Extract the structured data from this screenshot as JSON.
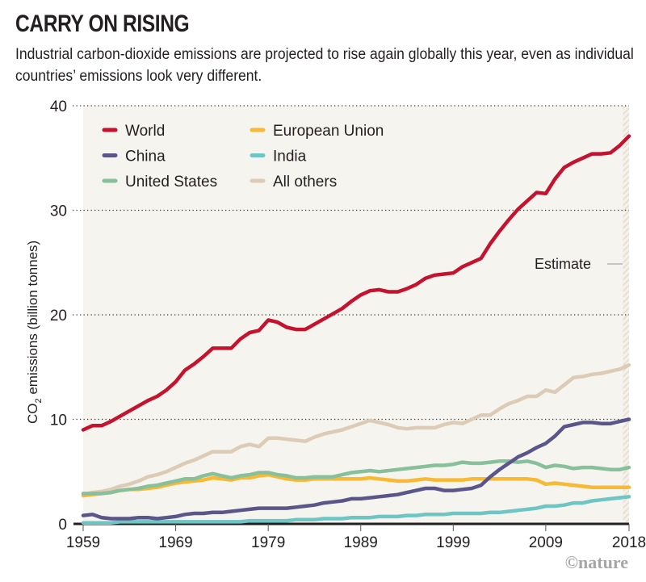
{
  "header": {
    "title": "CARRY ON RISING",
    "subtitle": "Industrial carbon-dioxide emissions are projected to rise again globally this year, even as individual countries’ emissions look very different."
  },
  "credit": "©nature",
  "chart_data": {
    "type": "line",
    "title": "CARRY ON RISING",
    "xlabel": "",
    "ylabel": "CO2 emissions (billion tonnes)",
    "ylabel_main": "CO",
    "ylabel_sub": "2",
    "ylabel_rest": " emissions (billion tonnes)",
    "xlim": [
      1959,
      2018
    ],
    "ylim": [
      0,
      40
    ],
    "x_ticks": [
      1959,
      1969,
      1979,
      1989,
      1999,
      2009,
      2018
    ],
    "x_tick_labels": [
      "1959",
      "1969",
      "1979",
      "1989",
      "1999",
      "2009",
      "2018"
    ],
    "y_ticks": [
      0,
      10,
      20,
      30,
      40
    ],
    "y_tick_labels": [
      "0",
      "10",
      "20",
      "30",
      "40"
    ],
    "grid": "horizontal dotted",
    "legend_position": "top-left",
    "annotation": {
      "text": "Estimate",
      "x_range": [
        2017,
        2018
      ]
    },
    "x": [
      1959,
      1960,
      1961,
      1962,
      1963,
      1964,
      1965,
      1966,
      1967,
      1968,
      1969,
      1970,
      1971,
      1972,
      1973,
      1974,
      1975,
      1976,
      1977,
      1978,
      1979,
      1980,
      1981,
      1982,
      1983,
      1984,
      1985,
      1986,
      1987,
      1988,
      1989,
      1990,
      1991,
      1992,
      1993,
      1994,
      1995,
      1996,
      1997,
      1998,
      1999,
      2000,
      2001,
      2002,
      2003,
      2004,
      2005,
      2006,
      2007,
      2008,
      2009,
      2010,
      2011,
      2012,
      2013,
      2014,
      2015,
      2016,
      2017,
      2018
    ],
    "series": [
      {
        "name": "World",
        "color": "#c4122f",
        "values": [
          9.0,
          9.4,
          9.4,
          9.8,
          10.3,
          10.8,
          11.3,
          11.8,
          12.2,
          12.8,
          13.6,
          14.7,
          15.3,
          16.0,
          16.8,
          16.8,
          16.8,
          17.7,
          18.3,
          18.5,
          19.5,
          19.3,
          18.8,
          18.6,
          18.6,
          19.1,
          19.6,
          20.1,
          20.6,
          21.3,
          21.9,
          22.3,
          22.4,
          22.2,
          22.2,
          22.5,
          22.9,
          23.5,
          23.8,
          23.9,
          24.0,
          24.6,
          25.0,
          25.4,
          26.8,
          28.0,
          29.1,
          30.1,
          30.9,
          31.7,
          31.6,
          33.0,
          34.1,
          34.6,
          35.0,
          35.4,
          35.4,
          35.5,
          36.2,
          37.1
        ]
      },
      {
        "name": "China",
        "color": "#5b5689",
        "values": [
          0.8,
          0.9,
          0.6,
          0.5,
          0.5,
          0.5,
          0.6,
          0.6,
          0.5,
          0.6,
          0.7,
          0.9,
          1.0,
          1.0,
          1.1,
          1.1,
          1.2,
          1.3,
          1.4,
          1.5,
          1.5,
          1.5,
          1.5,
          1.6,
          1.7,
          1.8,
          2.0,
          2.1,
          2.2,
          2.4,
          2.4,
          2.5,
          2.6,
          2.7,
          2.8,
          3.0,
          3.2,
          3.4,
          3.4,
          3.2,
          3.2,
          3.3,
          3.4,
          3.7,
          4.5,
          5.2,
          5.8,
          6.4,
          6.8,
          7.3,
          7.7,
          8.4,
          9.3,
          9.5,
          9.7,
          9.7,
          9.6,
          9.6,
          9.8,
          10.0
        ]
      },
      {
        "name": "United States",
        "color": "#87c09a",
        "values": [
          2.9,
          2.9,
          2.9,
          3.0,
          3.2,
          3.3,
          3.4,
          3.6,
          3.7,
          3.9,
          4.1,
          4.3,
          4.3,
          4.6,
          4.8,
          4.6,
          4.4,
          4.6,
          4.7,
          4.9,
          4.9,
          4.7,
          4.6,
          4.4,
          4.4,
          4.5,
          4.5,
          4.5,
          4.7,
          4.9,
          5.0,
          5.1,
          5.0,
          5.1,
          5.2,
          5.3,
          5.4,
          5.5,
          5.6,
          5.6,
          5.7,
          5.9,
          5.8,
          5.8,
          5.9,
          6.0,
          6.0,
          5.9,
          6.0,
          5.8,
          5.4,
          5.6,
          5.5,
          5.3,
          5.4,
          5.4,
          5.3,
          5.2,
          5.2,
          5.4
        ]
      },
      {
        "name": "European Union",
        "color": "#f8b934",
        "values": [
          2.7,
          2.8,
          2.9,
          3.0,
          3.2,
          3.3,
          3.3,
          3.4,
          3.5,
          3.7,
          3.9,
          4.0,
          4.1,
          4.2,
          4.4,
          4.3,
          4.2,
          4.4,
          4.4,
          4.6,
          4.7,
          4.5,
          4.3,
          4.2,
          4.2,
          4.3,
          4.3,
          4.3,
          4.3,
          4.3,
          4.3,
          4.4,
          4.3,
          4.2,
          4.1,
          4.1,
          4.2,
          4.3,
          4.2,
          4.2,
          4.2,
          4.2,
          4.3,
          4.3,
          4.3,
          4.3,
          4.3,
          4.3,
          4.3,
          4.2,
          3.8,
          3.9,
          3.8,
          3.7,
          3.6,
          3.5,
          3.5,
          3.5,
          3.5,
          3.5
        ]
      },
      {
        "name": "India",
        "color": "#6ec5c4",
        "values": [
          0.1,
          0.1,
          0.1,
          0.1,
          0.2,
          0.2,
          0.2,
          0.2,
          0.2,
          0.2,
          0.2,
          0.2,
          0.2,
          0.2,
          0.2,
          0.2,
          0.2,
          0.2,
          0.3,
          0.3,
          0.3,
          0.3,
          0.3,
          0.4,
          0.4,
          0.4,
          0.5,
          0.5,
          0.5,
          0.6,
          0.6,
          0.6,
          0.7,
          0.7,
          0.7,
          0.8,
          0.8,
          0.9,
          0.9,
          0.9,
          1.0,
          1.0,
          1.0,
          1.0,
          1.1,
          1.1,
          1.2,
          1.3,
          1.4,
          1.5,
          1.7,
          1.7,
          1.8,
          2.0,
          2.0,
          2.2,
          2.3,
          2.4,
          2.5,
          2.6
        ]
      },
      {
        "name": "All others",
        "color": "#dccbb7",
        "values": [
          2.8,
          3.0,
          3.1,
          3.3,
          3.6,
          3.8,
          4.1,
          4.5,
          4.7,
          5.0,
          5.4,
          5.8,
          6.1,
          6.5,
          6.9,
          6.9,
          6.9,
          7.4,
          7.6,
          7.4,
          8.2,
          8.2,
          8.1,
          8.0,
          7.9,
          8.3,
          8.6,
          8.8,
          9.0,
          9.3,
          9.6,
          9.9,
          9.7,
          9.5,
          9.2,
          9.1,
          9.2,
          9.2,
          9.2,
          9.5,
          9.7,
          9.6,
          10.0,
          10.4,
          10.4,
          11.0,
          11.5,
          11.8,
          12.2,
          12.2,
          12.8,
          12.6,
          13.3,
          14.0,
          14.1,
          14.3,
          14.4,
          14.6,
          14.8,
          15.2
        ]
      }
    ],
    "legend": [
      {
        "label": "World",
        "color": "#c4122f"
      },
      {
        "label": "China",
        "color": "#5b5689"
      },
      {
        "label": "United States",
        "color": "#87c09a"
      },
      {
        "label": "European Union",
        "color": "#f8b934"
      },
      {
        "label": "India",
        "color": "#6ec5c4"
      },
      {
        "label": "All others",
        "color": "#dccbb7"
      }
    ]
  }
}
